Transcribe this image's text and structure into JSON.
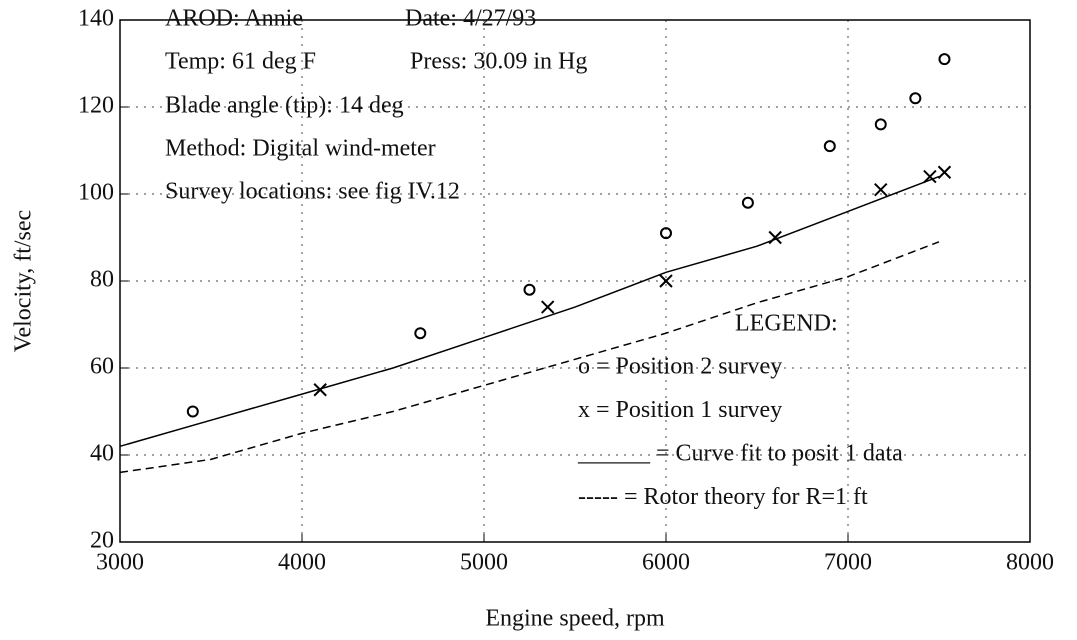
{
  "chart_data": {
    "type": "line",
    "xlabel": "Engine speed, rpm",
    "ylabel": "Velocity, ft/sec",
    "xlim": [
      3000,
      8000
    ],
    "xticks": [
      3000,
      4000,
      5000,
      6000,
      7000,
      8000
    ],
    "ylim": [
      20,
      140
    ],
    "yticks": [
      20,
      40,
      60,
      80,
      100,
      120,
      140
    ],
    "grid": true,
    "annotations": [
      "AROD: Annie",
      "Date: 4/27/93",
      "Temp: 61 deg F",
      "Press: 30.09 in Hg",
      "Blade angle (tip): 14 deg",
      "Method: Digital wind-meter",
      "Survey locations: see fig IV.12"
    ],
    "legend_title": "LEGEND:",
    "legend_position": "lower right",
    "series": [
      {
        "name": "o = Position 2 survey",
        "color": "#000000",
        "marker": "o",
        "x": [
          3400,
          4650,
          5250,
          6000,
          6450,
          6900,
          7180,
          7370,
          7530
        ],
        "values": [
          50,
          68,
          78,
          91,
          98,
          111,
          116,
          122,
          131
        ]
      },
      {
        "name": "x = Position 1 survey",
        "color": "#000000",
        "marker": "x",
        "x": [
          4100,
          5350,
          6000,
          6600,
          7180,
          7450,
          7530
        ],
        "values": [
          55,
          74,
          80,
          90,
          101,
          104,
          105
        ]
      },
      {
        "name": "______ = Curve fit to posit 1 data",
        "color": "#000000",
        "linestyle": "solid",
        "x": [
          3000,
          3500,
          4000,
          4500,
          5000,
          5500,
          6000,
          6500,
          7000,
          7500
        ],
        "values": [
          42,
          48,
          54,
          60,
          67,
          74,
          82,
          88,
          96,
          104
        ]
      },
      {
        "name": "----- = Rotor theory for R=1 ft",
        "color": "#000000",
        "linestyle": "dashed",
        "x": [
          3000,
          3500,
          4000,
          4500,
          5000,
          5500,
          6000,
          6500,
          7000,
          7500
        ],
        "values": [
          36,
          39,
          45,
          50,
          56,
          62,
          68,
          75,
          81,
          89
        ]
      }
    ]
  }
}
